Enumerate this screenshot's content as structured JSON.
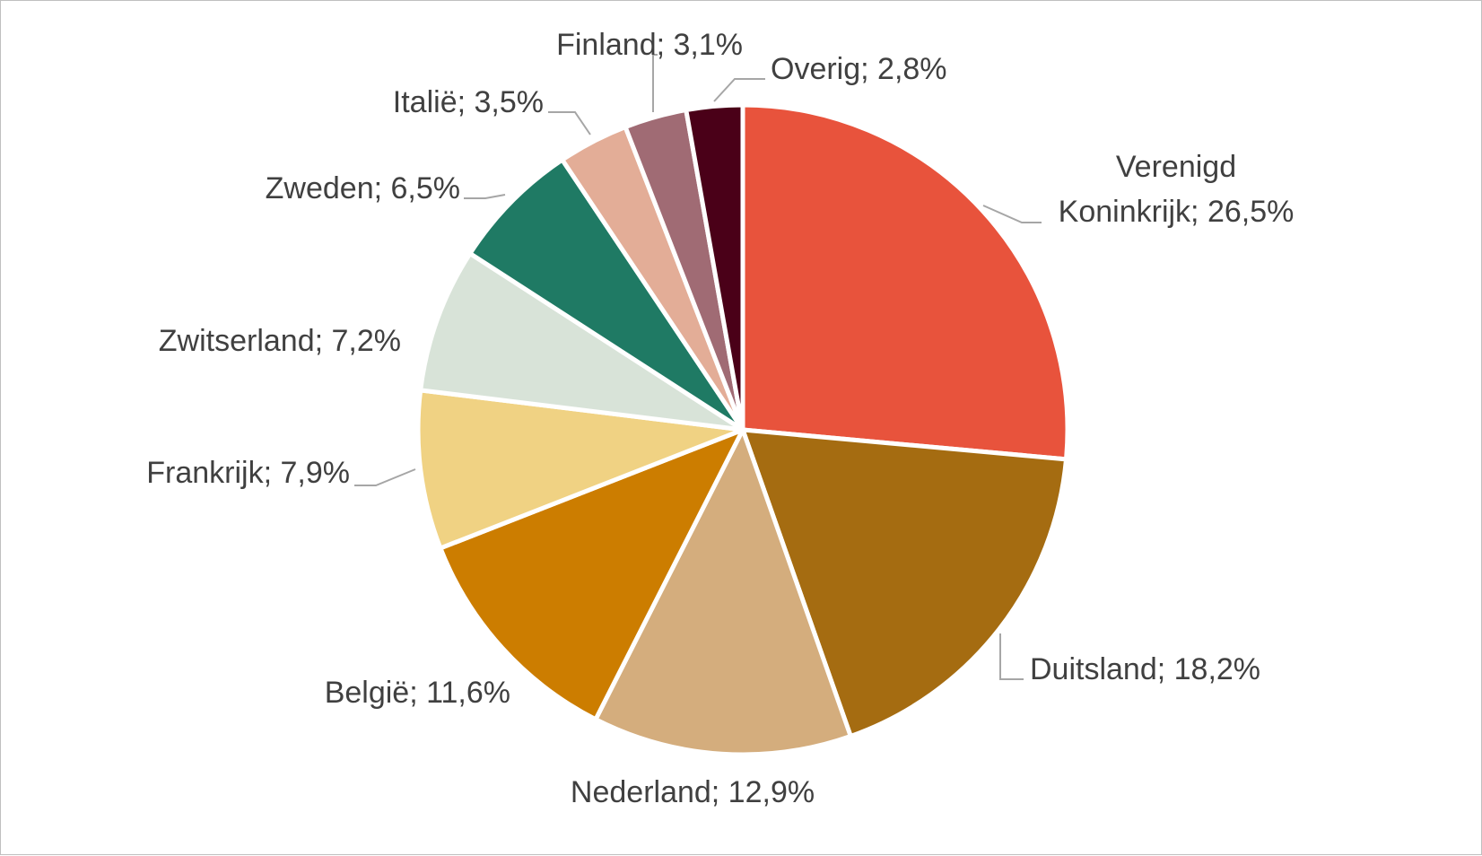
{
  "chart_data": {
    "type": "pie",
    "start_angle_deg": 0,
    "direction": "clockwise",
    "slices": [
      {
        "label": "Verenigd Koninkrijk",
        "value": 26.5,
        "display": [
          "Verenigd",
          "Koninkrijk; 26,5%"
        ],
        "color": "#e8533c"
      },
      {
        "label": "Duitsland",
        "value": 18.2,
        "display": [
          "Duitsland; 18,2%"
        ],
        "color": "#a56c11"
      },
      {
        "label": "Nederland",
        "value": 12.9,
        "display": [
          "Nederland; 12,9%"
        ],
        "color": "#d4ad7d"
      },
      {
        "label": "België",
        "value": 11.6,
        "display": [
          "België; 11,6%"
        ],
        "color": "#cc7d00"
      },
      {
        "label": "Frankrijk",
        "value": 7.9,
        "display": [
          "Frankrijk; 7,9%"
        ],
        "color": "#f0d283"
      },
      {
        "label": "Zwitserland",
        "value": 7.2,
        "display": [
          "Zwitserland; 7,2%"
        ],
        "color": "#d8e3d8"
      },
      {
        "label": "Zweden",
        "value": 6.5,
        "display": [
          "Zweden; 6,5%"
        ],
        "color": "#1f7a64"
      },
      {
        "label": "Italië",
        "value": 3.5,
        "display": [
          "Italië; 3,5%"
        ],
        "color": "#e3ad97"
      },
      {
        "label": "Finland",
        "value": 3.1,
        "display": [
          "Finland; 3,1%"
        ],
        "color": "#a06b74"
      },
      {
        "label": "Overig",
        "value": 2.8,
        "display": [
          "Overig; 2,8%"
        ],
        "color": "#4a0018"
      }
    ]
  }
}
